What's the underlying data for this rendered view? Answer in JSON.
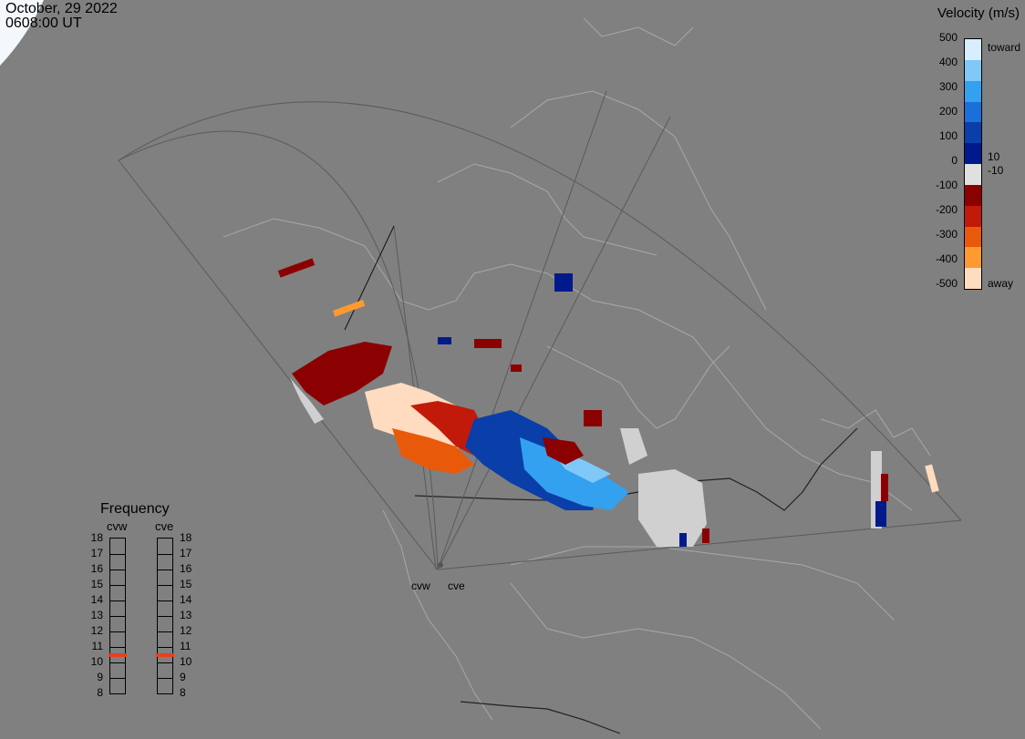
{
  "header": {
    "date": "October, 29 2022",
    "time": "0608:00 UT"
  },
  "velocity_scale": {
    "title": "Velocity (m/s)",
    "ticks": [
      "500",
      "400",
      "300",
      "200",
      "100",
      "0",
      "-100",
      "-200",
      "-300",
      "-400",
      "-500"
    ],
    "side_labels": {
      "toward": "toward",
      "plus10": "10",
      "minus10": "-10",
      "away": "away"
    },
    "colors": [
      "#d8eeff",
      "#7fc8f8",
      "#33a0f0",
      "#1a70d8",
      "#0a3ea8",
      "#001a8c",
      "#e0e0e0",
      "#8b0000",
      "#c21a0a",
      "#e85a0a",
      "#ff9a30",
      "#ffdcc0"
    ]
  },
  "frequency": {
    "title": "Frequency",
    "radars": [
      "cvw",
      "cve"
    ],
    "levels": [
      "18",
      "17",
      "16",
      "15",
      "14",
      "13",
      "12",
      "11",
      "10",
      "9",
      "8"
    ],
    "cvw_value": 10.5,
    "cve_value": 10.5,
    "marker_color": "#e8401a"
  },
  "radars": {
    "west": "cvw",
    "east": "cve"
  }
}
